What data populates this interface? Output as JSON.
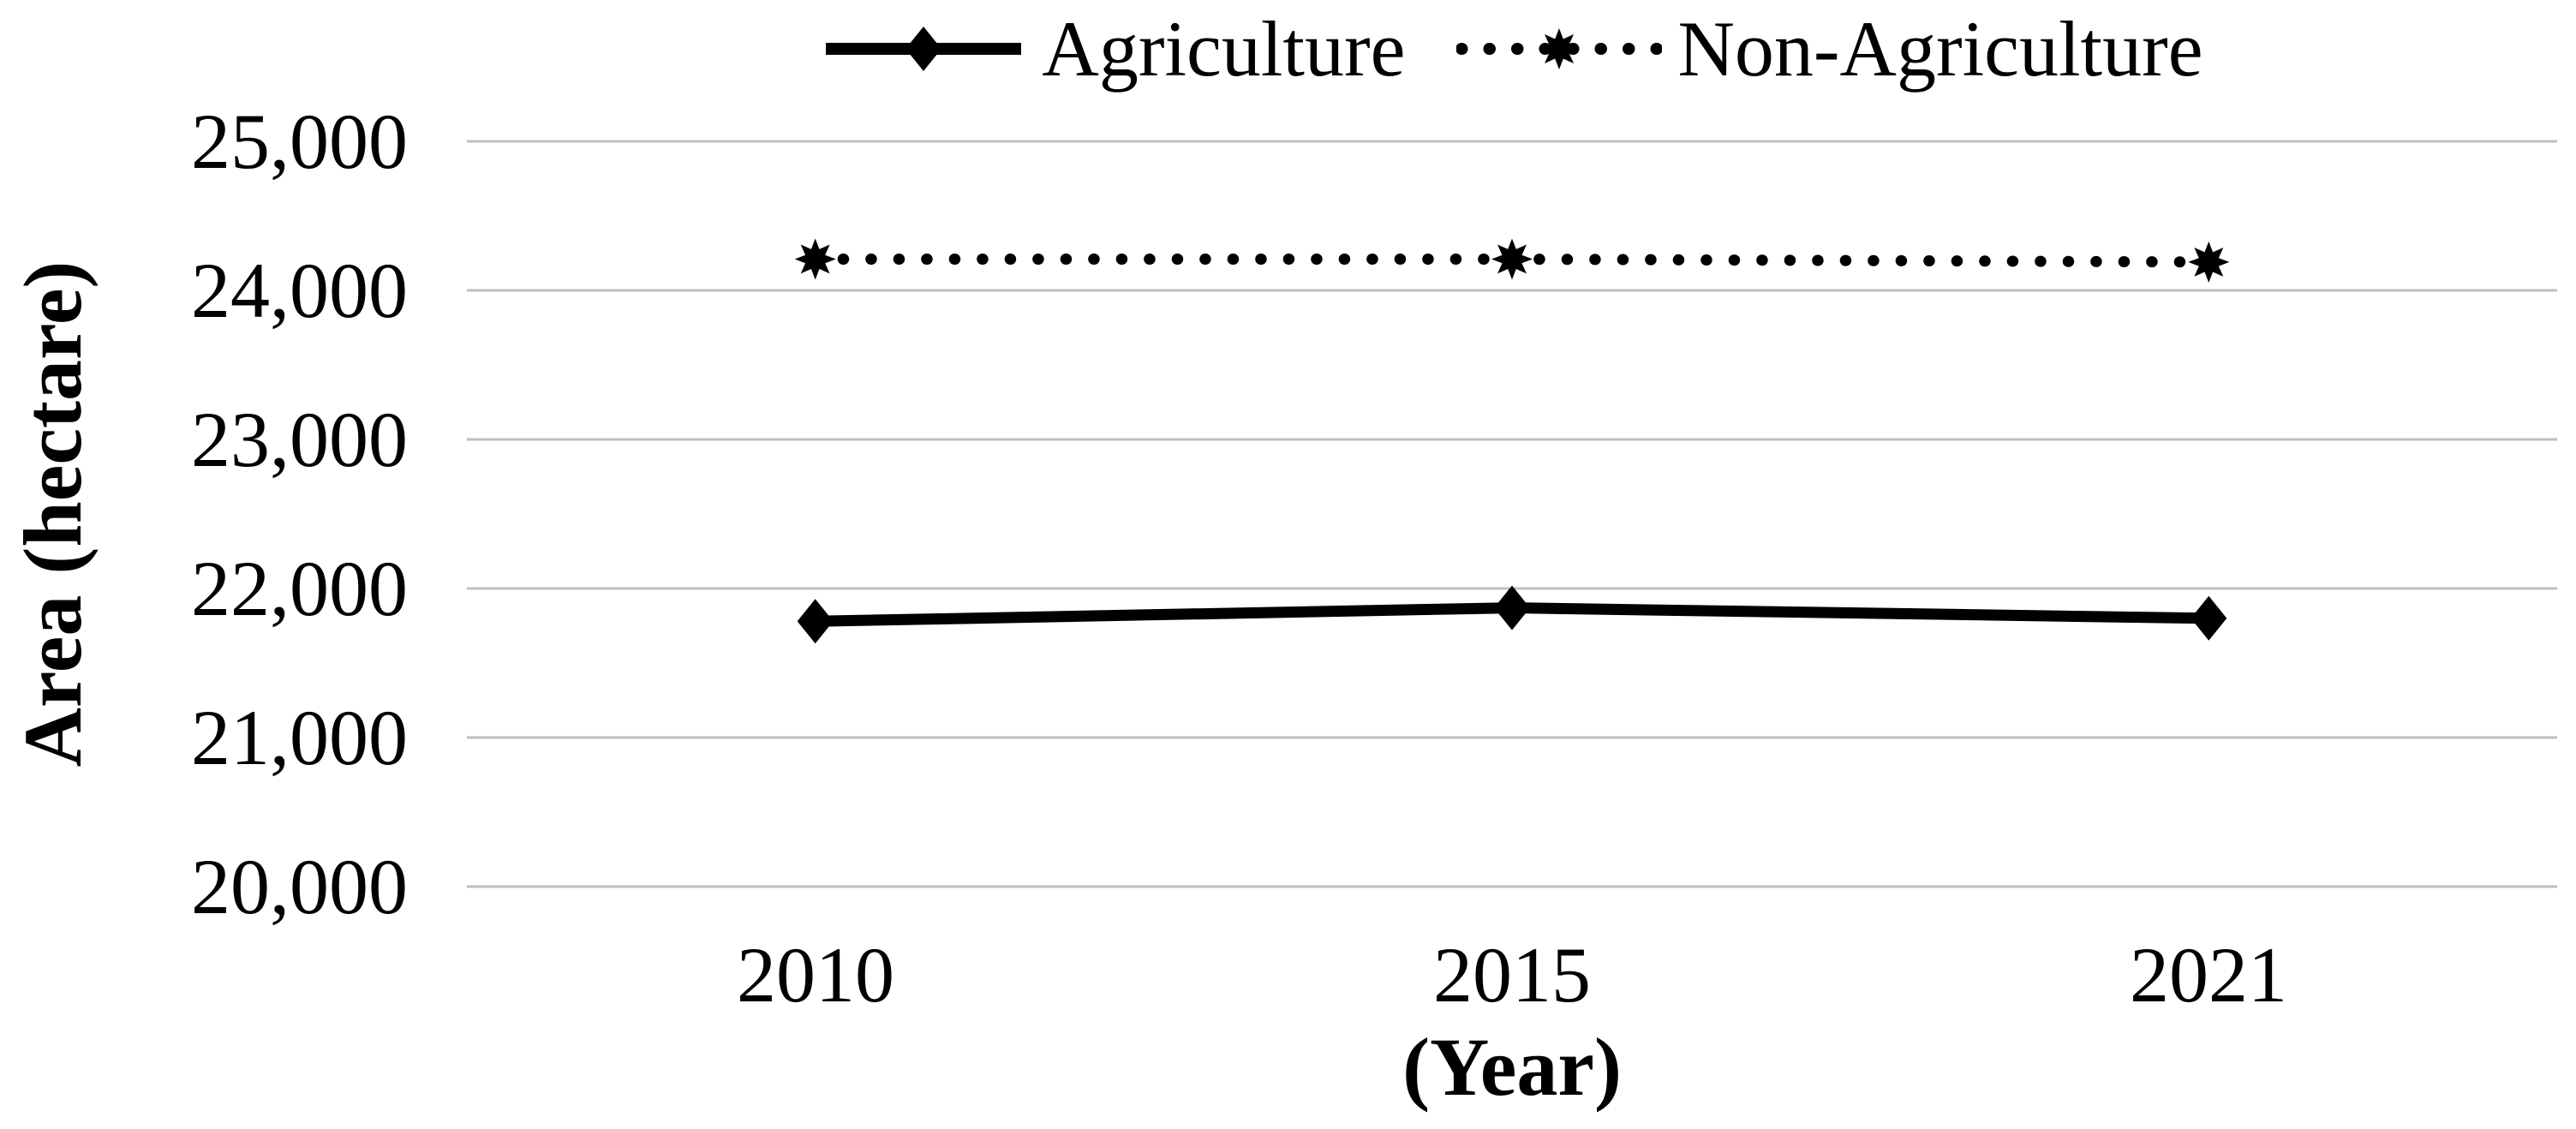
{
  "chart_data": {
    "type": "line",
    "title": "",
    "categories": [
      "2010",
      "2015",
      "2021"
    ],
    "series": [
      {
        "name": "Agriculture",
        "values": [
          21780,
          21870,
          21800
        ],
        "line_style": "solid",
        "marker": "diamond"
      },
      {
        "name": "Non-Agriculture",
        "values": [
          24210,
          24210,
          24190
        ],
        "line_style": "dotted",
        "marker": "star"
      }
    ],
    "xlabel": "(Year)",
    "ylabel": "Area (hectare)",
    "ylim": [
      20000,
      25000
    ],
    "ytick_step": 1000,
    "ytick_labels": [
      "20,000",
      "21,000",
      "22,000",
      "23,000",
      "24,000",
      "25,000"
    ],
    "grid": "horizontal",
    "legend_position": "top-center"
  },
  "colors": {
    "series": "#000000",
    "gridline": "#bfbfbf",
    "text": "#000000",
    "background": "#ffffff"
  }
}
